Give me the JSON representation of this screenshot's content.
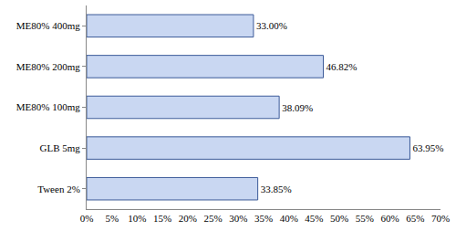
{
  "chart_data": {
    "type": "bar",
    "orientation": "horizontal",
    "categories": [
      "Tween 2%",
      "GLB 5mg",
      "ME80% 100mg",
      "ME80% 200mg",
      "ME80% 400mg"
    ],
    "values": [
      33.85,
      63.95,
      38.09,
      46.82,
      33.0
    ],
    "value_labels": [
      "33.85%",
      "63.95%",
      "38.09%",
      "46.82%",
      "33.00%"
    ],
    "data_labels": true,
    "color": "#c9d7f2",
    "grid": false,
    "xlim": [
      0,
      70
    ],
    "xticks": [
      {
        "value": 0,
        "label": "0%"
      },
      {
        "value": 5,
        "label": "5%"
      },
      {
        "value": 10,
        "label": "10%"
      },
      {
        "value": 15,
        "label": "15%"
      },
      {
        "value": 20,
        "label": "20%"
      },
      {
        "value": 25,
        "label": "25%"
      },
      {
        "value": 30,
        "label": "30%"
      },
      {
        "value": 35,
        "label": "35%"
      },
      {
        "value": 40,
        "label": "40%"
      },
      {
        "value": 45,
        "label": "45%"
      },
      {
        "value": 50,
        "label": "50%"
      },
      {
        "value": 55,
        "label": "55%"
      },
      {
        "value": 60,
        "label": "60%"
      },
      {
        "value": 65,
        "label": "65%"
      },
      {
        "value": 70,
        "label": "70%"
      }
    ]
  }
}
